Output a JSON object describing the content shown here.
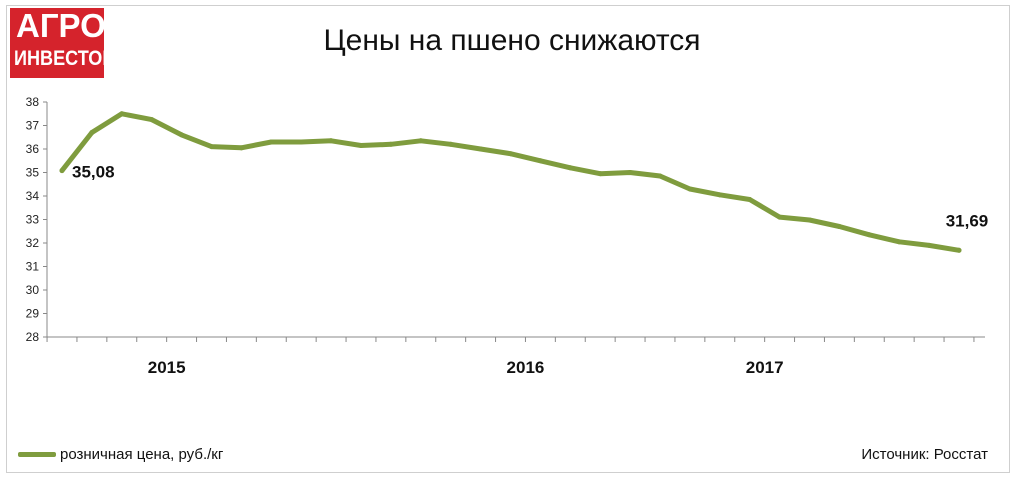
{
  "logo": {
    "line1": "АГРО",
    "line2": "ИНВЕСТОР"
  },
  "chart_data": {
    "type": "line",
    "title": "Цены на пшено снижаются",
    "xlabel": "",
    "ylabel": "",
    "ylim": [
      28,
      38
    ],
    "yticks": [
      28,
      29,
      30,
      31,
      32,
      33,
      34,
      35,
      36,
      37,
      38
    ],
    "year_labels": [
      {
        "label": "2015",
        "after_index": 3.5
      },
      {
        "label": "2016",
        "after_index": 15.5
      },
      {
        "label": "2017",
        "after_index": 23.5
      }
    ],
    "grid": false,
    "legend_position": "bottom-left",
    "series": [
      {
        "name": "розничная цена, руб./кг",
        "color": "#7f9c3e",
        "values": [
          35.08,
          36.7,
          37.5,
          37.25,
          36.6,
          36.1,
          36.05,
          36.3,
          36.3,
          36.35,
          36.15,
          36.2,
          36.35,
          36.2,
          36.0,
          35.8,
          35.5,
          35.2,
          34.95,
          35.0,
          34.85,
          34.3,
          34.05,
          33.85,
          33.1,
          32.98,
          32.7,
          32.35,
          32.05,
          31.9,
          31.69
        ]
      }
    ],
    "annotations": [
      {
        "index": 0,
        "text": "35,08"
      },
      {
        "index": 30,
        "text": "31,69"
      }
    ]
  },
  "source": "Источник: Росстат"
}
